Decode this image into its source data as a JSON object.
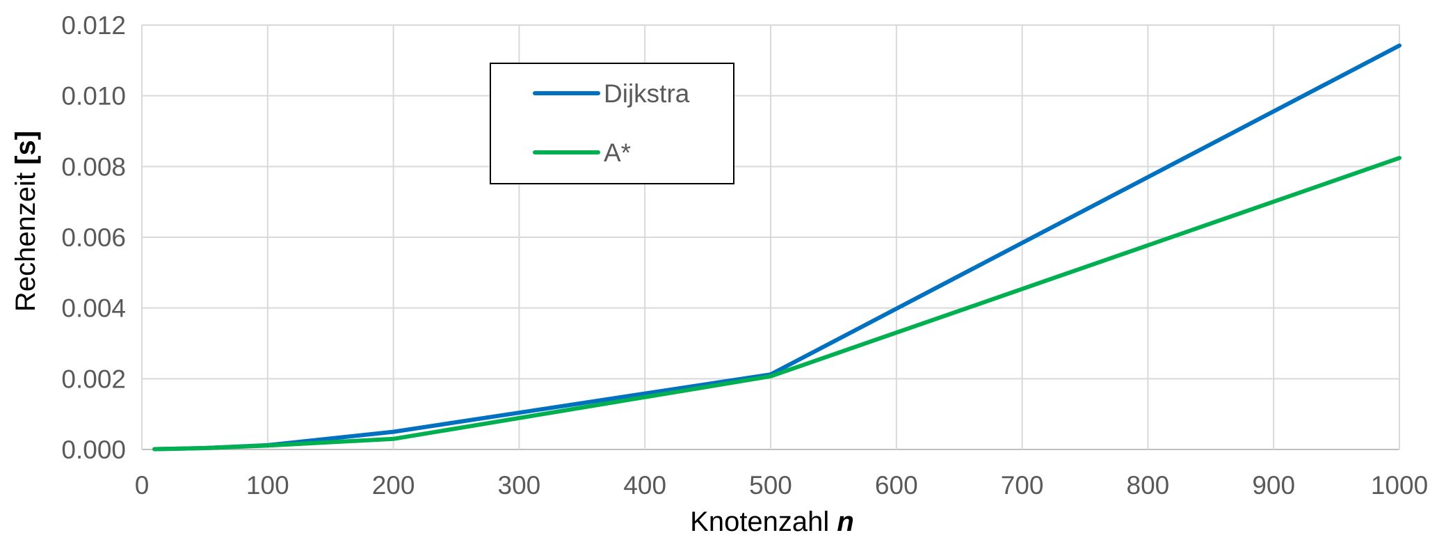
{
  "chart_data": {
    "type": "line",
    "xlabel": "Knotenzahl",
    "xlabel_var": "n",
    "ylabel": "Rechenzeit",
    "ylabel_unit": "[s]",
    "xlim": [
      0,
      1000
    ],
    "ylim": [
      0,
      0.012
    ],
    "xticks": [
      "0",
      "100",
      "200",
      "300",
      "400",
      "500",
      "600",
      "700",
      "800",
      "900",
      "1000"
    ],
    "yticks": [
      "0.000",
      "0.002",
      "0.004",
      "0.006",
      "0.008",
      "0.010",
      "0.012"
    ],
    "grid": true,
    "legend_position": "top-center",
    "x": [
      10,
      50,
      100,
      200,
      500,
      1000
    ],
    "series": [
      {
        "name": "Dijkstra",
        "color": "#0070C0",
        "values": [
          1e-05,
          4e-05,
          0.00012,
          0.0005,
          0.00212,
          0.01142
        ]
      },
      {
        "name": "A*",
        "color": "#00B050",
        "values": [
          1e-05,
          4e-05,
          0.00011,
          0.0003,
          0.00207,
          0.00824
        ]
      }
    ]
  }
}
